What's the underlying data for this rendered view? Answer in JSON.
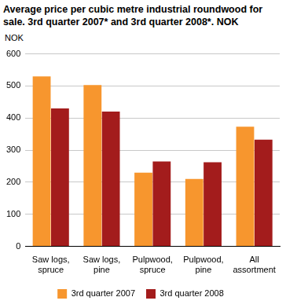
{
  "chart_data": {
    "type": "bar",
    "title": "Average price per cubic metre industrial roundwood for sale. 3rd quarter 2007* and 3rd quarter 2008*. NOK",
    "y_label": "NOK",
    "categories": [
      "Saw logs, spruce",
      "Saw logs, pine",
      "Pulpwood, spruce",
      "Pulpwood, pine",
      "All assortment"
    ],
    "series": [
      {
        "name": "3rd quarter 2007",
        "color": "#f7962e",
        "values": [
          530,
          503,
          230,
          210,
          373
        ]
      },
      {
        "name": "3rd quarter 2008",
        "color": "#a31c1c",
        "values": [
          430,
          420,
          265,
          262,
          333
        ]
      }
    ],
    "ylim": [
      0,
      600
    ],
    "yticks": [
      0,
      100,
      200,
      300,
      400,
      500,
      600
    ],
    "grid": true,
    "legend": "bottom"
  }
}
